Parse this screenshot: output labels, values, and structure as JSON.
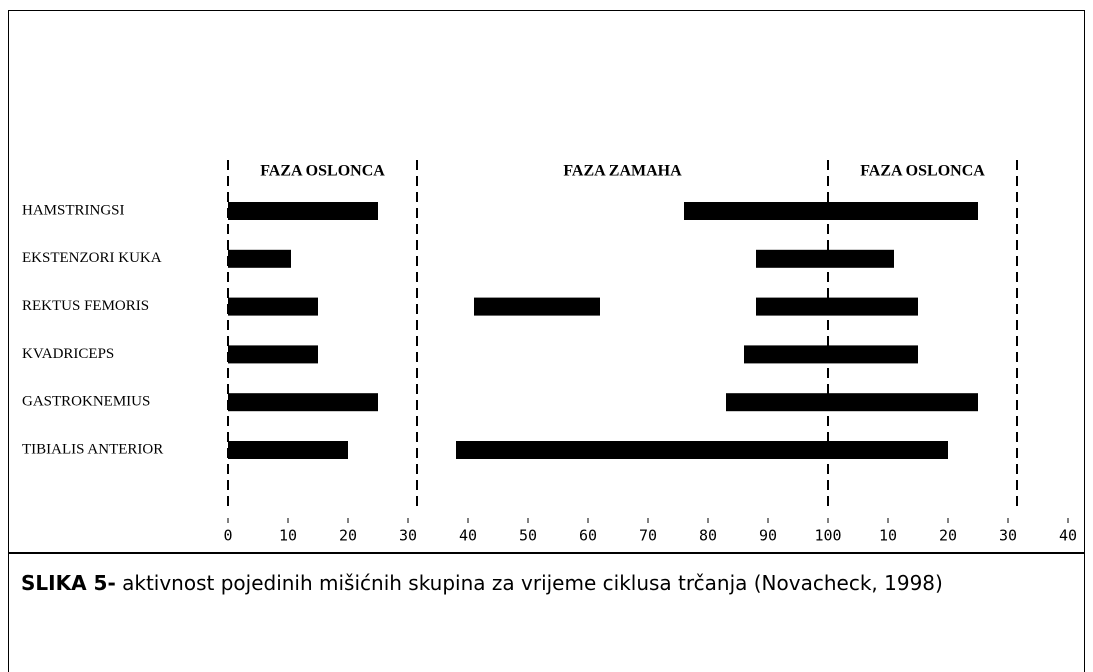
{
  "chart_data": {
    "type": "range-bar",
    "categories": [
      "HAMSTRINGSI",
      "EKSTENZORI KUKA",
      "REKTUS FEMORIS",
      "KVADRICEPS",
      "GASTROKNEMIUS",
      "TIBIALIS ANTERIOR"
    ],
    "ranges": [
      [
        [
          0,
          25
        ],
        [
          76,
          125
        ]
      ],
      [
        [
          0,
          10.5
        ],
        [
          88,
          111
        ]
      ],
      [
        [
          0,
          15
        ],
        [
          41,
          62
        ],
        [
          88,
          115
        ]
      ],
      [
        [
          0,
          15
        ],
        [
          86,
          115
        ]
      ],
      [
        [
          0,
          25
        ],
        [
          83,
          125
        ]
      ],
      [
        [
          0,
          20
        ],
        [
          38,
          120
        ]
      ]
    ],
    "color": "#000000",
    "xlim": [
      0,
      140
    ],
    "xticks": [
      0,
      10,
      20,
      30,
      40,
      50,
      60,
      70,
      80,
      90,
      100,
      {
        "value": 110,
        "label": "10"
      },
      {
        "value": 120,
        "label": "20"
      },
      {
        "value": 130,
        "label": "30"
      },
      {
        "value": 140,
        "label": "40"
      }
    ],
    "phase_lines": [
      0,
      31.5,
      100,
      131.5
    ],
    "phases": [
      "FAZA OSLONCA",
      "FAZA ZAMAHA",
      "FAZA OSLONCA"
    ]
  },
  "caption": {
    "label": "SLIKA 5-",
    "text": " aktivnost pojedinih mišićnih skupina za vrijeme ciklusa trčanja (Novacheck, 1998)"
  }
}
